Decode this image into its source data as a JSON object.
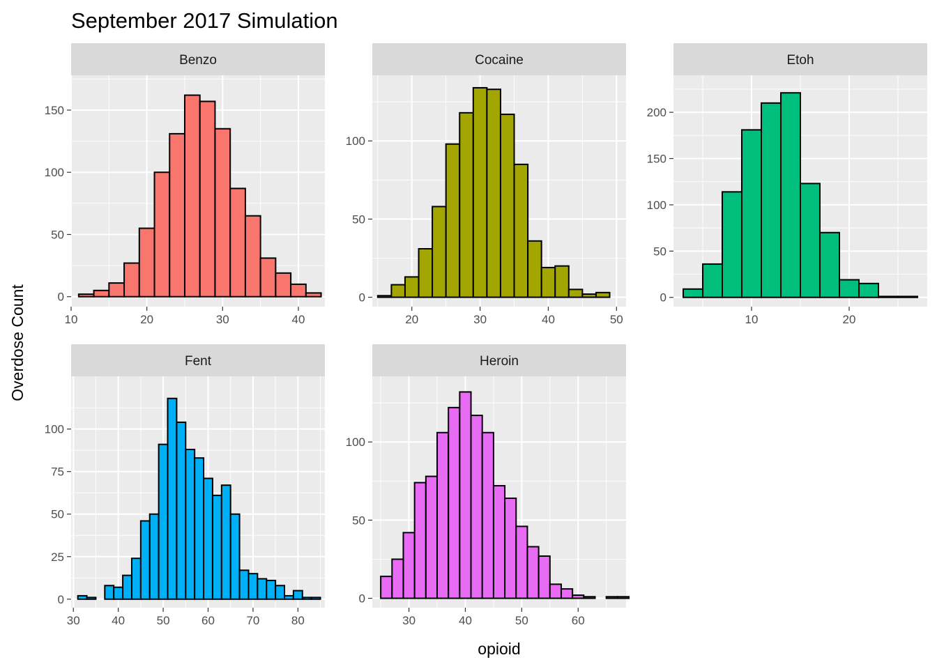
{
  "title": "September 2017 Simulation",
  "xlabel": "opioid",
  "ylabel": "Overdose Count",
  "colors": {
    "panel_bg": "#EBEBEB",
    "grid": "#FFFFFF",
    "strip_bg": "#D9D9D9",
    "bar_outline": "#000000",
    "tick_color": "#333333"
  },
  "chart_data": [
    {
      "type": "bar",
      "facet": "Benzo",
      "color": "#F8766D",
      "bin_width": 2,
      "x_start": 11,
      "counts": [
        2,
        5,
        11,
        27,
        55,
        100,
        131,
        162,
        157,
        135,
        87,
        65,
        31,
        19,
        10,
        3
      ],
      "xlim": [
        10,
        43.5
      ],
      "ylim": [
        -8,
        178
      ],
      "xticks": [
        10,
        20,
        30,
        40
      ],
      "yticks": [
        0,
        50,
        100,
        150
      ]
    },
    {
      "type": "bar",
      "facet": "Cocaine",
      "color": "#A3A500",
      "bin_width": 2,
      "x_start": 15,
      "counts": [
        1,
        8,
        13,
        31,
        58,
        98,
        118,
        134,
        133,
        117,
        85,
        36,
        19,
        20,
        5,
        2,
        3
      ],
      "xlim": [
        14.2,
        51.4
      ],
      "ylim": [
        -6,
        142
      ],
      "xticks": [
        20,
        30,
        40,
        50
      ],
      "yticks": [
        0,
        50,
        100
      ]
    },
    {
      "type": "bar",
      "facet": "Etoh",
      "color": "#00BF7D",
      "bin_width": 2,
      "x_start": 3,
      "counts": [
        9,
        36,
        114,
        181,
        210,
        221,
        123,
        70,
        19,
        15,
        1,
        1
      ],
      "xlim": [
        2,
        28
      ],
      "ylim": [
        -10,
        240
      ],
      "xticks": [
        10,
        20
      ],
      "yticks": [
        0,
        50,
        100,
        150,
        200
      ]
    },
    {
      "type": "bar",
      "facet": "Fent",
      "color": "#00B0F6",
      "bin_width": 2,
      "x_start": 31,
      "counts": [
        2,
        1,
        0,
        8,
        7,
        14,
        24,
        46,
        50,
        91,
        118,
        104,
        88,
        83,
        71,
        61,
        67,
        50,
        17,
        15,
        12,
        11,
        8,
        2,
        5,
        1,
        1
      ],
      "xlim": [
        29.5,
        86
      ],
      "ylim": [
        -5,
        131
      ],
      "xticks": [
        30,
        40,
        50,
        60,
        70,
        80
      ],
      "yticks": [
        0,
        25,
        50,
        75,
        100
      ]
    },
    {
      "type": "bar",
      "facet": "Heroin",
      "color": "#E76BF3",
      "bin_width": 2,
      "x_start": 25,
      "counts": [
        14,
        25,
        42,
        74,
        78,
        106,
        122,
        132,
        117,
        106,
        72,
        64,
        46,
        33,
        27,
        9,
        6,
        2,
        1,
        0,
        1,
        1
      ],
      "xlim": [
        23.5,
        68.5
      ],
      "ylim": [
        -6,
        142
      ],
      "xticks": [
        30,
        40,
        50,
        60
      ],
      "yticks": [
        0,
        50,
        100
      ]
    }
  ]
}
